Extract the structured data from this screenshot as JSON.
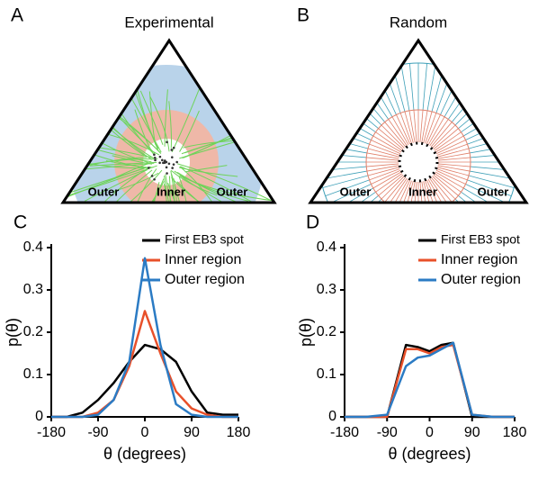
{
  "panel_a": {
    "label": "A",
    "title": "Experimental",
    "regions": [
      "Outer",
      "Inner",
      "Outer"
    ]
  },
  "panel_b": {
    "label": "B",
    "title": "Random",
    "regions": [
      "Outer",
      "Inner",
      "Outer"
    ]
  },
  "chart_data": [
    {
      "type": "line",
      "panel_label": "C",
      "ylabel": "p(θ)",
      "xlabel": "θ (degrees)",
      "x": [
        -180,
        -150,
        -120,
        -90,
        -60,
        -30,
        0,
        30,
        60,
        90,
        120,
        150,
        180
      ],
      "xlim": [
        -180,
        180
      ],
      "xticks": [
        -180,
        -90,
        0,
        90,
        180
      ],
      "ylim": [
        0,
        0.4
      ],
      "yticks": [
        0,
        0.1,
        0.2,
        0.3,
        0.4
      ],
      "legend": "upper right",
      "series": [
        {
          "name": "First EB3 spot",
          "color": "#000000",
          "values": [
            0,
            0,
            0.01,
            0.04,
            0.08,
            0.13,
            0.17,
            0.16,
            0.13,
            0.06,
            0.01,
            0.005,
            0.005
          ]
        },
        {
          "name": "Inner region",
          "color": "#e8502a",
          "values": [
            0,
            0,
            0,
            0.01,
            0.04,
            0.12,
            0.25,
            0.15,
            0.06,
            0.02,
            0.005,
            0,
            0
          ]
        },
        {
          "name": "Outer region",
          "color": "#2b7bc4",
          "values": [
            0,
            0,
            0,
            0.005,
            0.04,
            0.13,
            0.375,
            0.17,
            0.03,
            0.005,
            0,
            0,
            0
          ]
        }
      ]
    },
    {
      "type": "line",
      "panel_label": "D",
      "ylabel": "p(θ)",
      "xlabel": "θ (degrees)",
      "x": [
        -180,
        -135,
        -90,
        -50,
        -25,
        0,
        25,
        50,
        90,
        135,
        180
      ],
      "xlim": [
        -180,
        180
      ],
      "xticks": [
        -180,
        -90,
        0,
        90,
        180
      ],
      "ylim": [
        0,
        0.4
      ],
      "yticks": [
        0,
        0.1,
        0.2,
        0.3,
        0.4
      ],
      "legend": "upper right",
      "series": [
        {
          "name": "First EB3 spot",
          "color": "#000000",
          "values": [
            0,
            0,
            0,
            0.17,
            0.165,
            0.155,
            0.17,
            0.175,
            0,
            0,
            0
          ]
        },
        {
          "name": "Inner region",
          "color": "#e8502a",
          "values": [
            0,
            0,
            0,
            0.16,
            0.16,
            0.15,
            0.165,
            0.17,
            0.005,
            0,
            0
          ]
        },
        {
          "name": "Outer region",
          "color": "#2b7bc4",
          "values": [
            0,
            0,
            0.005,
            0.12,
            0.14,
            0.145,
            0.16,
            0.175,
            0.005,
            0,
            0
          ]
        }
      ]
    }
  ]
}
